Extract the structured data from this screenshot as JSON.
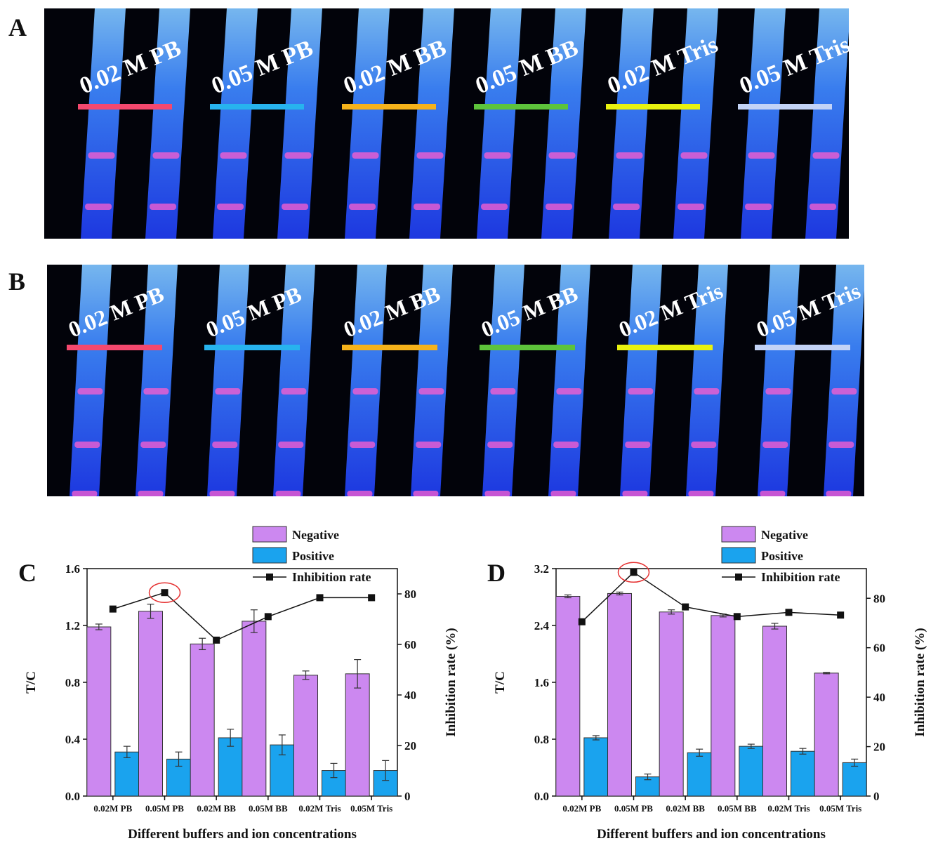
{
  "panels": {
    "a": "A",
    "b": "B",
    "c": "C",
    "d": "D"
  },
  "strip_colors": [
    "#f4486e",
    "#27b3ee",
    "#f5b21a",
    "#5dc33b",
    "#e8f20f",
    "#c3d3f6"
  ],
  "photo_a_labels": [
    "0.02 M PB",
    "0.05 M PB",
    "0.02 M BB",
    "0.05 M BB",
    "0.02 M Tris",
    "0.05 M Tris"
  ],
  "photo_b_labels": [
    "0.02 M PB",
    "0.05 M PB",
    "0.02 M BB",
    "0.05 M BB",
    "0.02 M Tris",
    "0.05 M Tris"
  ],
  "legend": {
    "negative": "Negative",
    "positive": "Positive",
    "inhibition": "Inhibition rate"
  },
  "colors": {
    "negative": "#cc88f0",
    "positive": "#1aa3ee",
    "line": "#111111",
    "highlight": "#e53030"
  },
  "chart_data": [
    {
      "type": "bar",
      "panel": "C",
      "categories": [
        "0.02M PB",
        "0.05M PB",
        "0.02M BB",
        "0.05M BB",
        "0.02M Tris",
        "0.05M Tris"
      ],
      "series": [
        {
          "name": "Negative",
          "values": [
            1.19,
            1.3,
            1.07,
            1.23,
            0.85,
            0.86
          ],
          "errors": [
            0.02,
            0.05,
            0.04,
            0.08,
            0.03,
            0.1
          ]
        },
        {
          "name": "Positive",
          "values": [
            0.31,
            0.26,
            0.41,
            0.36,
            0.18,
            0.18
          ],
          "errors": [
            0.04,
            0.05,
            0.06,
            0.07,
            0.05,
            0.07
          ]
        }
      ],
      "line": {
        "name": "Inhibition rate",
        "values": [
          74,
          80.5,
          61.7,
          71,
          78.5,
          78.5
        ]
      },
      "highlight_index": 1,
      "xlabel": "Different buffers and ion concentrations",
      "ylabel": "T/C",
      "y2label": "Inhibition rate (%)",
      "ylim": [
        0,
        1.6
      ],
      "yticks": [
        "0.0",
        "0.4",
        "0.8",
        "1.2",
        "1.6"
      ],
      "y2lim": [
        0,
        90
      ],
      "y2ticks": [
        "0",
        "20",
        "40",
        "60",
        "80"
      ]
    },
    {
      "type": "bar",
      "panel": "D",
      "categories": [
        "0.02M PB",
        "0.05M PB",
        "0.02M BB",
        "0.05M BB",
        "0.02M Tris",
        "0.05M Tris"
      ],
      "series": [
        {
          "name": "Negative",
          "values": [
            2.81,
            2.85,
            2.59,
            2.54,
            2.39,
            1.73
          ],
          "errors": [
            0.02,
            0.02,
            0.03,
            0.02,
            0.04,
            0.01
          ]
        },
        {
          "name": "Positive",
          "values": [
            0.82,
            0.27,
            0.61,
            0.7,
            0.63,
            0.47
          ],
          "errors": [
            0.03,
            0.04,
            0.05,
            0.03,
            0.04,
            0.05
          ]
        }
      ],
      "line": {
        "name": "Inhibition rate",
        "values": [
          70.5,
          90.5,
          76.5,
          72.6,
          74.3,
          73.2
        ]
      },
      "highlight_index": 1,
      "xlabel": "Different buffers and ion concentrations",
      "ylabel": "T/C",
      "y2label": "Inhibition rate (%)",
      "ylim": [
        0,
        3.2
      ],
      "yticks": [
        "0.0",
        "0.8",
        "1.6",
        "2.4",
        "3.2"
      ],
      "y2lim": [
        0,
        92
      ],
      "y2ticks": [
        "0",
        "20",
        "40",
        "60",
        "80"
      ]
    }
  ]
}
